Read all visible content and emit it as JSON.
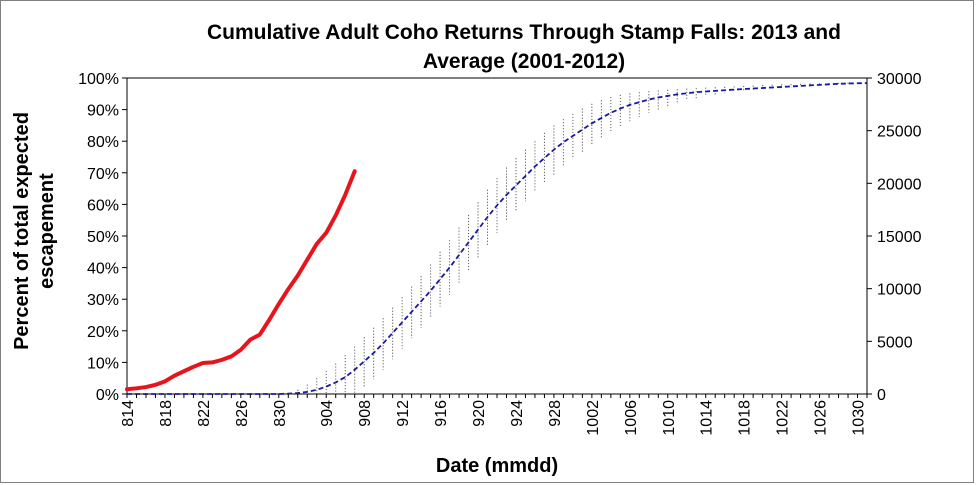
{
  "chart_data": {
    "type": "line",
    "title_line1": "Cumulative Adult Coho Returns Through Stamp Falls: 2013 and",
    "title_line2": "Average (2001-2012)",
    "xlabel": "Date (mmdd)",
    "ylabel_line1": "Percent of total expected",
    "ylabel_line2": "escapement",
    "x_categories": [
      "814",
      "815",
      "816",
      "817",
      "818",
      "819",
      "820",
      "821",
      "822",
      "823",
      "824",
      "825",
      "826",
      "827",
      "828",
      "829",
      "830",
      "831",
      "901",
      "902",
      "903",
      "904",
      "905",
      "906",
      "907",
      "908",
      "909",
      "910",
      "911",
      "912",
      "913",
      "914",
      "915",
      "916",
      "917",
      "918",
      "919",
      "920",
      "921",
      "922",
      "923",
      "924",
      "925",
      "926",
      "927",
      "928",
      "929",
      "930",
      "1001",
      "1002",
      "1003",
      "1004",
      "1005",
      "1006",
      "1007",
      "1008",
      "1009",
      "1010",
      "1011",
      "1012",
      "1013",
      "1014",
      "1015",
      "1016",
      "1017",
      "1018",
      "1019",
      "1020",
      "1021",
      "1022",
      "1023",
      "1024",
      "1025",
      "1026",
      "1027",
      "1028",
      "1029",
      "1030",
      "1031"
    ],
    "x_tick_labels": [
      "814",
      "818",
      "822",
      "826",
      "830",
      "904",
      "908",
      "912",
      "916",
      "920",
      "924",
      "928",
      "1002",
      "1006",
      "1010",
      "1014",
      "1018",
      "1022",
      "1026",
      "1030"
    ],
    "y_left_ticks": [
      "0%",
      "10%",
      "20%",
      "30%",
      "40%",
      "50%",
      "60%",
      "70%",
      "80%",
      "90%",
      "100%"
    ],
    "y_left_range": [
      0,
      100
    ],
    "y_right_ticks": [
      "0",
      "5000",
      "10000",
      "15000",
      "20000",
      "25000",
      "30000"
    ],
    "y_right_range": [
      0,
      30000
    ],
    "series": [
      {
        "axis": "left",
        "color": "#e8141b",
        "style": "solid",
        "values": [
          1.5,
          1.8,
          2.2,
          2.9,
          4.0,
          5.8,
          7.2,
          8.6,
          9.8,
          10.0,
          10.8,
          11.9,
          14.0,
          17.2,
          18.8,
          23.5,
          28.5,
          33.2,
          37.5,
          42.5,
          47.5,
          51.0,
          56.5,
          63.0,
          70.5
        ]
      },
      {
        "axis": "right",
        "color": "#1a1aa0",
        "style": "dashed",
        "values": [
          0,
          0,
          0,
          0,
          0,
          0,
          0,
          0,
          0,
          0,
          0,
          0,
          0,
          0,
          0,
          0,
          0,
          30,
          90,
          200,
          400,
          700,
          1100,
          1600,
          2300,
          3100,
          3900,
          4800,
          5800,
          6800,
          7800,
          8800,
          9800,
          10900,
          12000,
          13200,
          14400,
          15600,
          16800,
          17900,
          18900,
          19800,
          20700,
          21600,
          22400,
          23200,
          23900,
          24500,
          25100,
          25700,
          26200,
          26700,
          27100,
          27450,
          27700,
          27950,
          28150,
          28300,
          28450,
          28550,
          28650,
          28720,
          28780,
          28840,
          28900,
          28950,
          29000,
          29050,
          29100,
          29150,
          29200,
          29250,
          29300,
          29350,
          29400,
          29450,
          29480,
          29500,
          29520
        ]
      },
      {
        "axis": "right",
        "color": "#606060",
        "style": "error-range",
        "upper": [
          0,
          0,
          0,
          0,
          0,
          0,
          0,
          0,
          0,
          0,
          0,
          0,
          0,
          0,
          0,
          0,
          0,
          100,
          400,
          900,
          1500,
          2200,
          2900,
          3700,
          4500,
          5400,
          6300,
          7200,
          8200,
          9200,
          10200,
          11200,
          12300,
          13500,
          14600,
          15800,
          17000,
          18200,
          19400,
          20500,
          21500,
          22400,
          23200,
          24000,
          24800,
          25500,
          26100,
          26600,
          27100,
          27550,
          27900,
          28200,
          28400,
          28550,
          28650,
          28750,
          28820,
          28880,
          28940,
          28990,
          29040,
          29090,
          29130,
          29170,
          29210,
          29250,
          29290,
          29330,
          29360,
          29390,
          29420,
          29450,
          29480,
          29500,
          29520,
          29540,
          29560,
          29580,
          29600
        ],
        "lower": [
          0,
          0,
          0,
          0,
          0,
          0,
          0,
          0,
          0,
          0,
          0,
          0,
          0,
          0,
          0,
          0,
          0,
          0,
          0,
          0,
          0,
          0,
          0,
          0,
          100,
          700,
          1400,
          2300,
          3300,
          4300,
          5300,
          6300,
          7300,
          8300,
          9400,
          10500,
          11700,
          12900,
          14100,
          15300,
          16400,
          17400,
          18300,
          19200,
          20000,
          20800,
          21600,
          22300,
          23000,
          23700,
          24300,
          24900,
          25400,
          25900,
          26300,
          26700,
          27000,
          27300,
          27600,
          27850,
          28050,
          28250,
          28400,
          28550,
          28650,
          28750,
          28850,
          28950,
          29000,
          29050,
          29100,
          29150,
          29200,
          29250,
          29300,
          29330,
          29360,
          29390,
          29420
        ]
      }
    ]
  }
}
